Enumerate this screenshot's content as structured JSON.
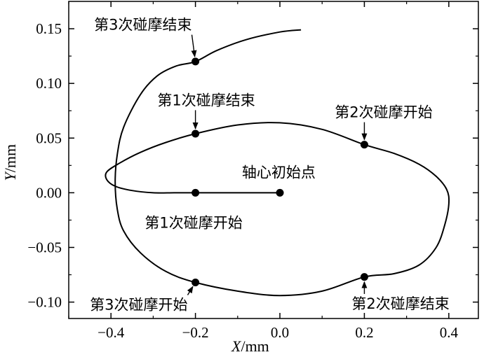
{
  "chart_data": {
    "type": "line",
    "xlabel_var": "X",
    "xlabel_unit": "/mm",
    "ylabel_var": "Y",
    "ylabel_unit": "/mm",
    "xlim": [
      -0.5,
      0.47
    ],
    "ylim": [
      -0.115,
      0.175
    ],
    "x_ticks": [
      -0.4,
      -0.2,
      0.0,
      0.2,
      0.4
    ],
    "x_tick_labels": [
      "−0.4",
      "−0.2",
      "0.0",
      "0.2",
      "0.4"
    ],
    "y_ticks": [
      -0.1,
      -0.05,
      0.0,
      0.05,
      0.1,
      0.15
    ],
    "y_tick_labels": [
      "−0.10",
      "−0.05",
      "0.00",
      "0.05",
      "0.10",
      "0.15"
    ],
    "grid": false,
    "series": [
      {
        "x": [
          0.0,
          -0.05,
          -0.1,
          -0.15,
          -0.2,
          -0.25,
          -0.3,
          -0.35,
          -0.39,
          -0.41,
          -0.41,
          -0.38,
          -0.33,
          -0.27,
          -0.2,
          -0.1,
          0.0,
          0.1,
          0.2,
          0.27,
          0.33,
          0.37,
          0.395,
          0.4,
          0.39,
          0.37,
          0.33,
          0.27,
          0.2,
          0.1,
          0.0,
          -0.1,
          -0.2,
          -0.27,
          -0.33,
          -0.37,
          -0.385,
          -0.39,
          -0.385,
          -0.37,
          -0.33,
          -0.29,
          -0.245,
          -0.2,
          -0.15,
          -0.08,
          0.0,
          0.05
        ],
        "y": [
          0.0,
          0.0,
          0.0,
          0.0,
          0.0,
          0.0,
          0.0,
          0.002,
          0.006,
          0.012,
          0.019,
          0.027,
          0.037,
          0.046,
          0.054,
          0.062,
          0.064,
          0.058,
          0.044,
          0.036,
          0.026,
          0.015,
          0.003,
          -0.01,
          -0.03,
          -0.05,
          -0.066,
          -0.074,
          -0.077,
          -0.09,
          -0.094,
          -0.09,
          -0.082,
          -0.072,
          -0.055,
          -0.035,
          -0.015,
          0.01,
          0.035,
          0.06,
          0.09,
          0.107,
          0.116,
          0.12,
          0.13,
          0.14,
          0.147,
          0.149
        ]
      }
    ],
    "points": [
      {
        "label": "轴心初始点",
        "x": 0.0,
        "y": 0.0,
        "label_x": -0.09,
        "label_y": 0.014,
        "arrow": false
      },
      {
        "label": "第1次碰摩开始",
        "x": -0.2,
        "y": 0.0,
        "label_x": -0.32,
        "label_y": -0.032,
        "arrow": false
      },
      {
        "label": "第1次碰摩结束",
        "x": -0.2,
        "y": 0.054,
        "label_x": -0.29,
        "label_y": 0.08,
        "arrow": true
      },
      {
        "label": "第2次碰摩开始",
        "x": 0.2,
        "y": 0.044,
        "label_x": 0.13,
        "label_y": 0.069,
        "arrow": true
      },
      {
        "label": "第2次碰摩结束",
        "x": 0.2,
        "y": -0.077,
        "label_x": 0.17,
        "label_y": -0.106,
        "arrow": true
      },
      {
        "label": "第3次碰摩开始",
        "x": -0.2,
        "y": -0.082,
        "label_x": -0.45,
        "label_y": -0.107,
        "arrow": true
      },
      {
        "label": "第3次碰摩结束",
        "x": -0.2,
        "y": 0.12,
        "label_x": -0.44,
        "label_y": 0.149,
        "arrow": true
      }
    ]
  }
}
